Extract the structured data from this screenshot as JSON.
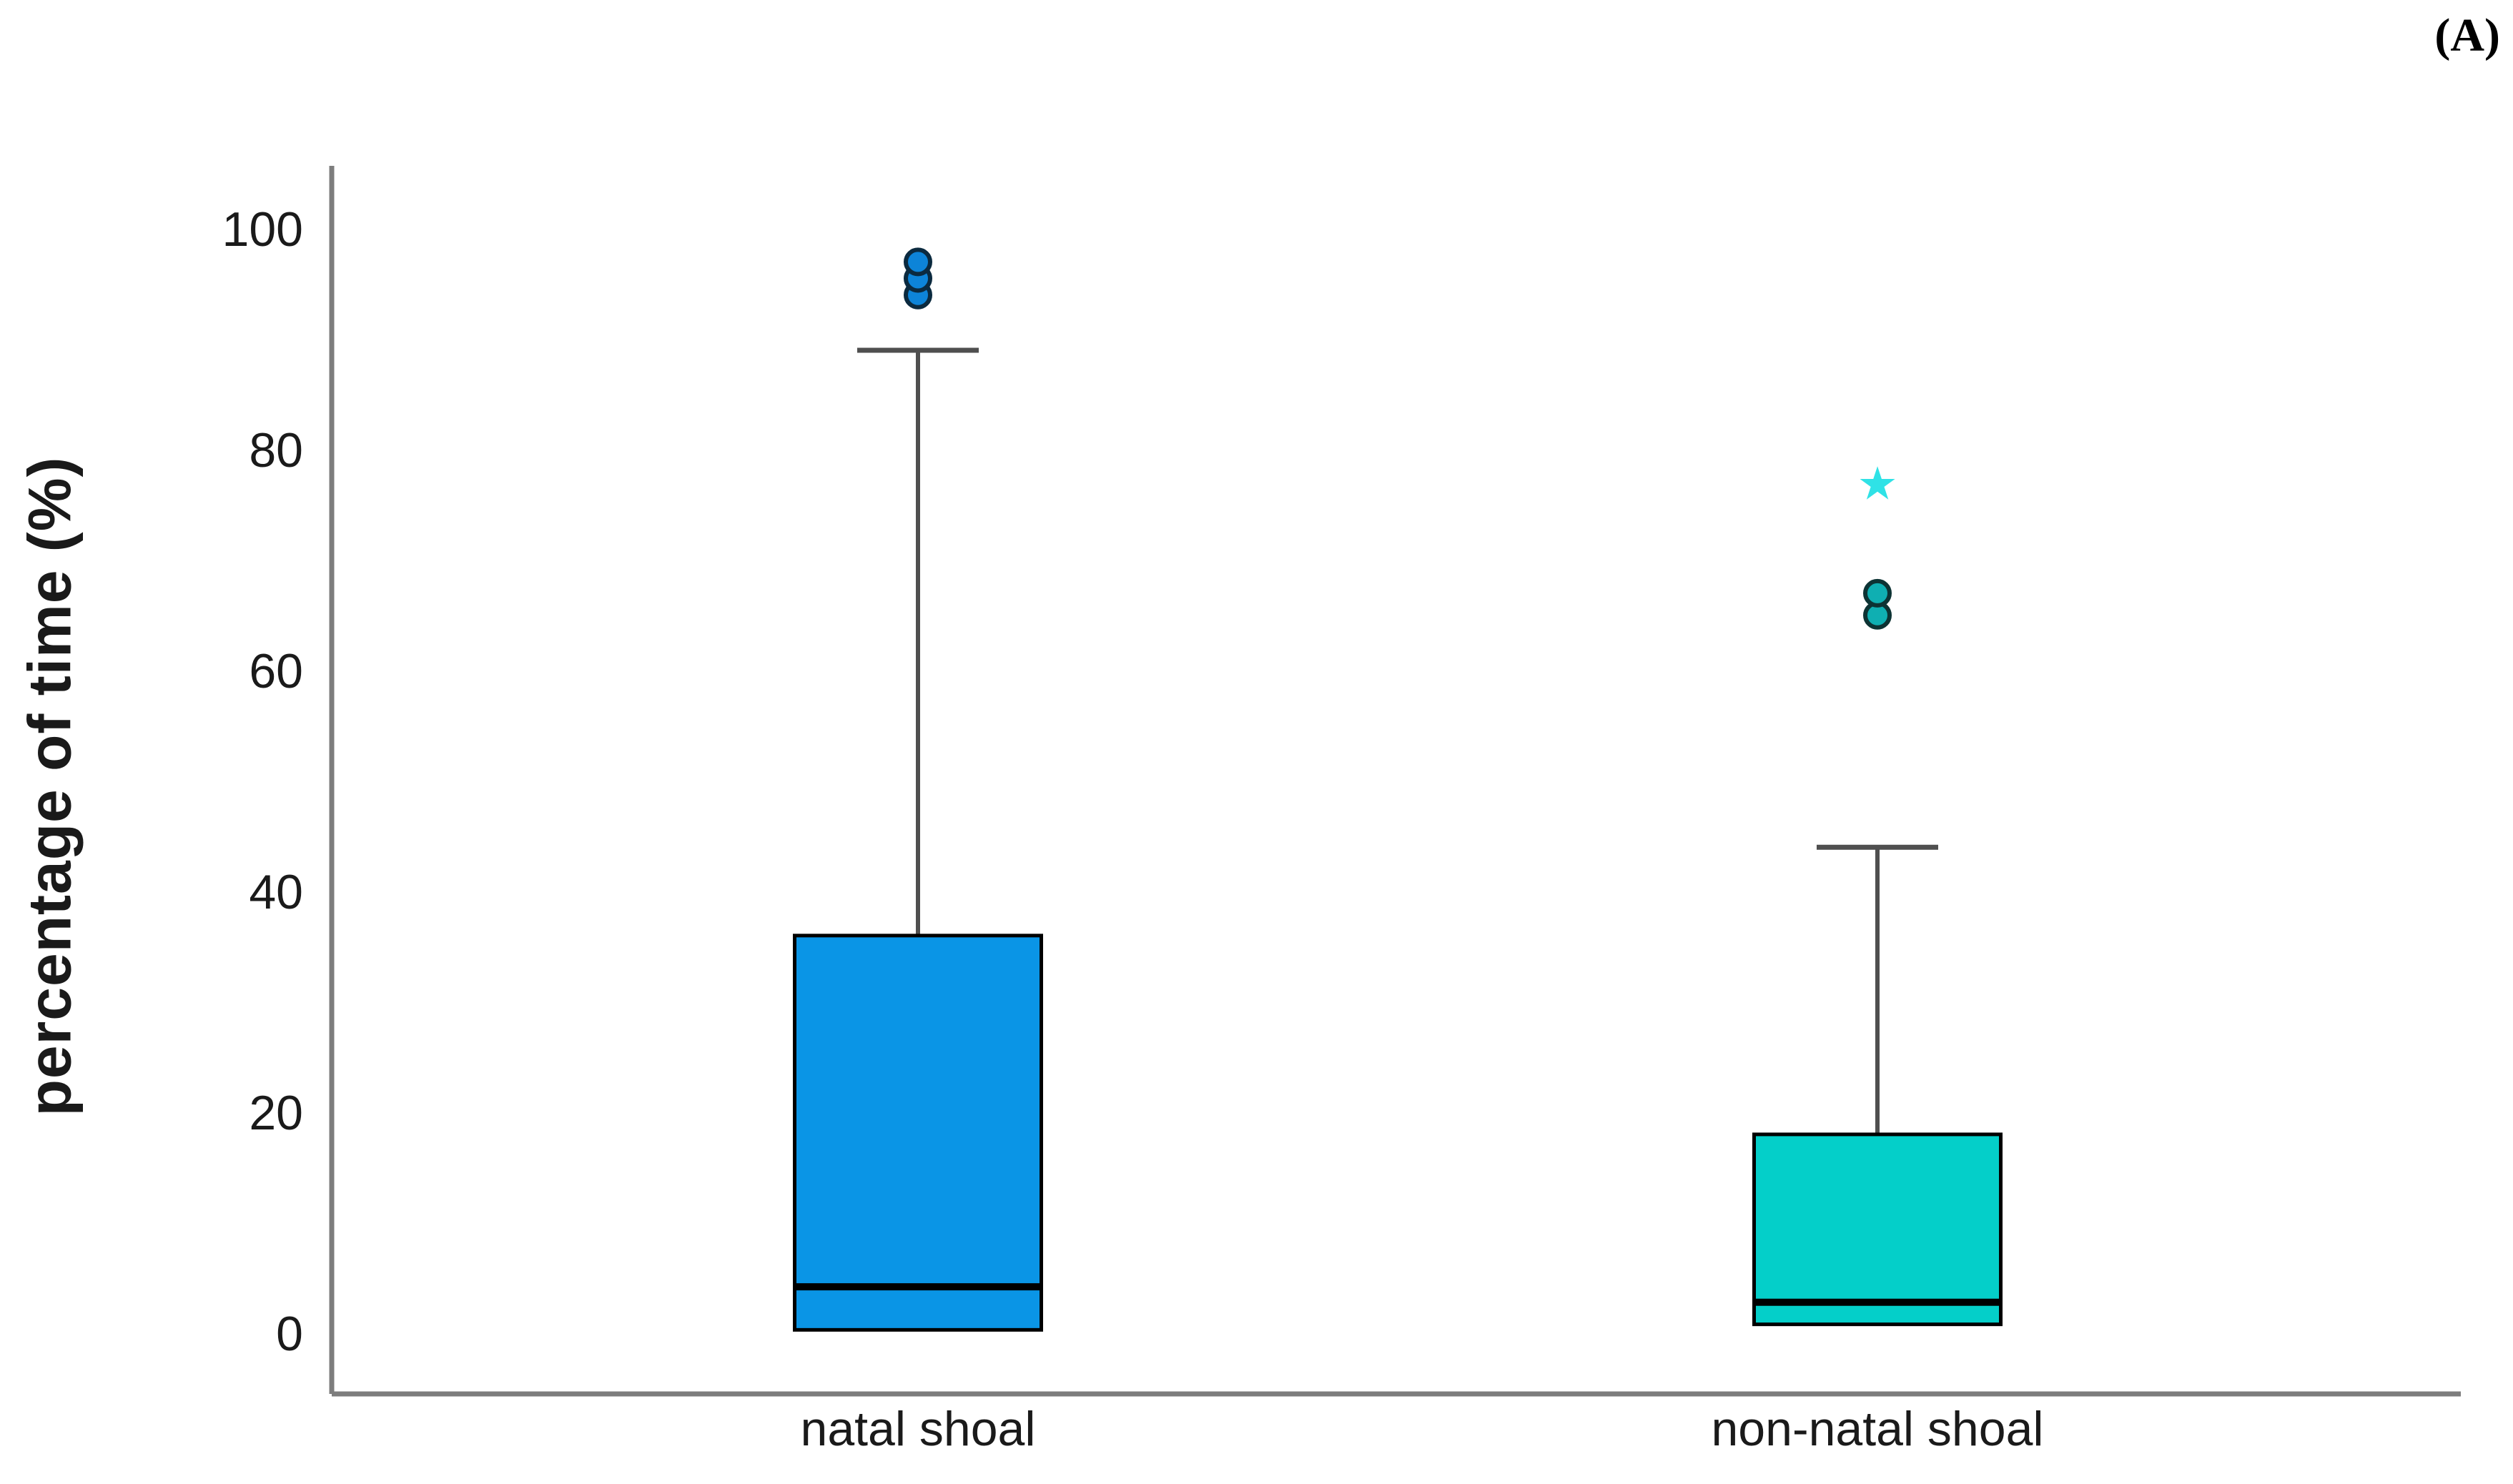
{
  "figure": {
    "background": "#ffffff"
  },
  "chart_data": {
    "type": "boxplot",
    "panel_label": "(A)",
    "title": "",
    "ylabel": "percentage of time (%)",
    "xlabel": "",
    "ylim": [
      0,
      100
    ],
    "yticks": [
      0,
      20,
      40,
      60,
      80,
      100
    ],
    "grid": false,
    "legend": "none",
    "axis_color": "#7d7d7d",
    "text_color": "#1a1a1a",
    "categories": [
      "natal shoal",
      "non-natal shoal"
    ],
    "series": [
      {
        "name": "natal shoal",
        "q1": 0.3,
        "median": 4.2,
        "q3": 36,
        "whisker_low": 0.3,
        "whisker_high": 89,
        "outliers": [
          {
            "value": 94,
            "marker": "circle"
          },
          {
            "value": 95.5,
            "marker": "circle"
          },
          {
            "value": 97,
            "marker": "circle"
          }
        ],
        "colors": {
          "box_fill": "#0a95e6",
          "box_border": "#000000",
          "median": "#000000",
          "whisker": "#4f4f4f",
          "outlier_fill": "#0d84d8",
          "outlier_border": "#0b2a3f",
          "star": "#2fe2e6"
        }
      },
      {
        "name": "non-natal shoal",
        "q1": 0.8,
        "median": 2.8,
        "q3": 18,
        "whisker_low": 0.8,
        "whisker_high": 44,
        "outliers": [
          {
            "value": 65,
            "marker": "circle"
          },
          {
            "value": 67,
            "marker": "circle"
          },
          {
            "value": 77,
            "marker": "star"
          }
        ],
        "colors": {
          "box_fill": "#04cfc9",
          "box_border": "#000000",
          "median": "#000000",
          "whisker": "#4f4f4f",
          "outlier_fill": "#0fafb2",
          "outlier_border": "#0d3334",
          "star": "#2fe2e6"
        }
      }
    ]
  }
}
